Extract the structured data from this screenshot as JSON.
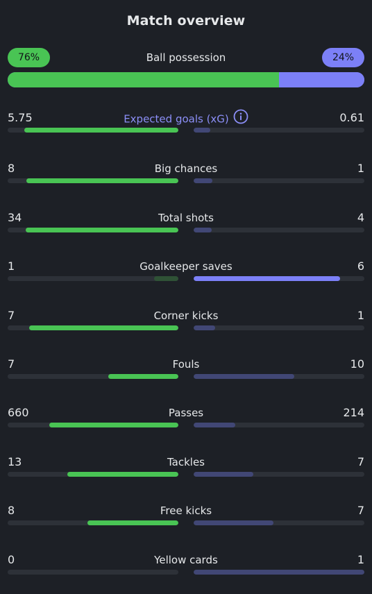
{
  "title": "Match overview",
  "possession": {
    "label": "Ball possession",
    "home": "76%",
    "away": "24%",
    "home_fraction": 0.76,
    "away_fraction": 0.24,
    "home_color": "#49c454",
    "away_color": "#7c80f7"
  },
  "stats": [
    {
      "label": "Expected goals (xG)",
      "home": "5.75",
      "away": "0.61",
      "home_fraction": 0.904,
      "away_fraction": 0.096,
      "home_style": "green",
      "away_style": "darkblue",
      "has_info_icon": true,
      "accent": true
    },
    {
      "label": "Big chances",
      "home": "8",
      "away": "1",
      "home_fraction": 0.889,
      "away_fraction": 0.111,
      "home_style": "green",
      "away_style": "darkblue"
    },
    {
      "label": "Total shots",
      "home": "34",
      "away": "4",
      "home_fraction": 0.895,
      "away_fraction": 0.105,
      "home_style": "green",
      "away_style": "darkblue"
    },
    {
      "label": "Goalkeeper saves",
      "home": "1",
      "away": "6",
      "home_fraction": 0.143,
      "away_fraction": 0.857,
      "home_style": "darkgreen",
      "away_style": "blue"
    },
    {
      "label": "Corner kicks",
      "home": "7",
      "away": "1",
      "home_fraction": 0.875,
      "away_fraction": 0.125,
      "home_style": "green",
      "away_style": "darkblue"
    },
    {
      "label": "Fouls",
      "home": "7",
      "away": "10",
      "home_fraction": 0.412,
      "away_fraction": 0.588,
      "home_style": "green",
      "away_style": "darkblue"
    },
    {
      "label": "Passes",
      "home": "660",
      "away": "214",
      "home_fraction": 0.755,
      "away_fraction": 0.245,
      "home_style": "green",
      "away_style": "darkblue"
    },
    {
      "label": "Tackles",
      "home": "13",
      "away": "7",
      "home_fraction": 0.65,
      "away_fraction": 0.35,
      "home_style": "green",
      "away_style": "darkblue"
    },
    {
      "label": "Free kicks",
      "home": "8",
      "away": "7",
      "home_fraction": 0.533,
      "away_fraction": 0.467,
      "home_style": "green",
      "away_style": "darkblue"
    },
    {
      "label": "Yellow cards",
      "home": "0",
      "away": "1",
      "home_fraction": 0.0,
      "away_fraction": 1.0,
      "home_style": "green",
      "away_style": "darkblue"
    }
  ],
  "icons": {
    "xg_info": "info-icon"
  }
}
